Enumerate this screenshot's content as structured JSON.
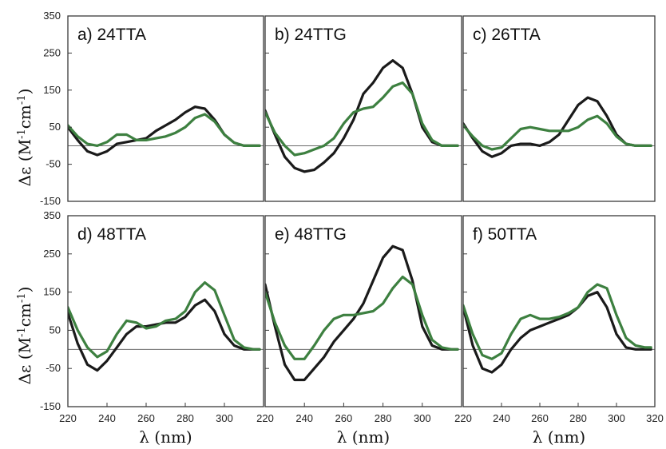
{
  "chart_data": {
    "type": "line",
    "layout": "2x3 small multiples, shared axes",
    "xlabel": "λ (nm)",
    "ylabel": "Δε (M-1cm-1)",
    "ylabel_parts": {
      "main": "Δε (M",
      "sup1": "-1",
      "mid": "cm",
      "sup2": "-1",
      "end": ")"
    },
    "xlim": [
      220,
      320
    ],
    "ylim": [
      -150,
      350
    ],
    "xticks": [
      220,
      240,
      260,
      280,
      300,
      320
    ],
    "yticks": [
      -150,
      -50,
      50,
      150,
      250,
      350
    ],
    "zero_line": 0,
    "grid": false,
    "legend": "none",
    "series_colors": [
      "#1a1a1a",
      "#3d8040"
    ],
    "panels": [
      {
        "label": "a) 24TTA",
        "series": [
          {
            "x": [
              220,
              225,
              230,
              235,
              240,
              245,
              250,
              255,
              260,
              265,
              270,
              275,
              280,
              285,
              290,
              295,
              300,
              305,
              310,
              315,
              318
            ],
            "values": [
              50,
              15,
              -15,
              -25,
              -15,
              5,
              10,
              15,
              20,
              40,
              55,
              70,
              90,
              105,
              100,
              70,
              30,
              8,
              0,
              0,
              0
            ]
          },
          {
            "x": [
              220,
              225,
              230,
              235,
              240,
              245,
              250,
              255,
              260,
              265,
              270,
              275,
              280,
              285,
              290,
              295,
              300,
              305,
              310,
              315,
              318
            ],
            "values": [
              55,
              25,
              5,
              0,
              10,
              30,
              30,
              15,
              15,
              20,
              25,
              35,
              50,
              75,
              85,
              65,
              30,
              8,
              0,
              0,
              0
            ]
          }
        ]
      },
      {
        "label": "b) 24TTG",
        "series": [
          {
            "x": [
              220,
              225,
              230,
              235,
              240,
              245,
              250,
              255,
              260,
              265,
              270,
              275,
              280,
              285,
              290,
              295,
              300,
              305,
              310,
              315,
              318
            ],
            "values": [
              95,
              30,
              -30,
              -60,
              -70,
              -65,
              -45,
              -20,
              20,
              70,
              140,
              170,
              210,
              230,
              210,
              140,
              50,
              10,
              0,
              0,
              0
            ]
          },
          {
            "x": [
              220,
              225,
              230,
              235,
              240,
              245,
              250,
              255,
              260,
              265,
              270,
              275,
              280,
              285,
              290,
              295,
              300,
              305,
              310,
              315,
              318
            ],
            "values": [
              90,
              35,
              0,
              -25,
              -20,
              -10,
              0,
              20,
              60,
              90,
              100,
              105,
              130,
              160,
              170,
              140,
              60,
              15,
              0,
              0,
              0
            ]
          }
        ]
      },
      {
        "label": "c) 26TTA",
        "series": [
          {
            "x": [
              220,
              225,
              230,
              235,
              240,
              245,
              250,
              255,
              260,
              265,
              270,
              275,
              280,
              285,
              290,
              295,
              300,
              305,
              310,
              315,
              318
            ],
            "values": [
              60,
              20,
              -15,
              -30,
              -20,
              0,
              5,
              5,
              0,
              10,
              30,
              70,
              110,
              130,
              120,
              80,
              30,
              5,
              0,
              0,
              0
            ]
          },
          {
            "x": [
              220,
              225,
              230,
              235,
              240,
              245,
              250,
              255,
              260,
              265,
              270,
              275,
              280,
              285,
              290,
              295,
              300,
              305,
              310,
              315,
              318
            ],
            "values": [
              55,
              25,
              0,
              -10,
              -5,
              20,
              45,
              50,
              45,
              40,
              40,
              40,
              50,
              70,
              80,
              60,
              25,
              5,
              0,
              0,
              0
            ]
          }
        ]
      },
      {
        "label": "d) 48TTA",
        "series": [
          {
            "x": [
              220,
              225,
              230,
              235,
              240,
              245,
              250,
              255,
              260,
              265,
              270,
              275,
              280,
              285,
              290,
              295,
              300,
              305,
              310,
              315,
              318
            ],
            "values": [
              95,
              15,
              -40,
              -55,
              -30,
              5,
              40,
              60,
              60,
              65,
              70,
              70,
              85,
              115,
              130,
              100,
              40,
              10,
              0,
              0,
              0
            ]
          },
          {
            "x": [
              220,
              225,
              230,
              235,
              240,
              245,
              250,
              255,
              260,
              265,
              270,
              275,
              280,
              285,
              290,
              295,
              300,
              305,
              310,
              315,
              318
            ],
            "values": [
              110,
              50,
              5,
              -20,
              -5,
              40,
              75,
              70,
              55,
              60,
              75,
              80,
              100,
              150,
              175,
              155,
              90,
              25,
              5,
              0,
              0
            ]
          }
        ]
      },
      {
        "label": "e) 48TTG",
        "series": [
          {
            "x": [
              220,
              225,
              230,
              235,
              240,
              245,
              250,
              255,
              260,
              265,
              270,
              275,
              280,
              285,
              290,
              295,
              300,
              305,
              310,
              315,
              318
            ],
            "values": [
              170,
              60,
              -40,
              -80,
              -80,
              -50,
              -20,
              20,
              50,
              80,
              120,
              180,
              240,
              270,
              260,
              180,
              60,
              10,
              0,
              0,
              0
            ]
          },
          {
            "x": [
              220,
              225,
              230,
              235,
              240,
              245,
              250,
              255,
              260,
              265,
              270,
              275,
              280,
              285,
              290,
              295,
              300,
              305,
              310,
              315,
              318
            ],
            "values": [
              150,
              70,
              10,
              -25,
              -25,
              10,
              50,
              80,
              90,
              90,
              95,
              100,
              120,
              160,
              190,
              170,
              90,
              25,
              5,
              0,
              0
            ]
          }
        ]
      },
      {
        "label": "f) 50TTA",
        "series": [
          {
            "x": [
              220,
              225,
              230,
              235,
              240,
              245,
              250,
              255,
              260,
              265,
              270,
              275,
              280,
              285,
              290,
              295,
              300,
              305,
              310,
              315,
              318
            ],
            "values": [
              110,
              10,
              -50,
              -60,
              -40,
              0,
              30,
              50,
              60,
              70,
              80,
              90,
              110,
              140,
              150,
              110,
              40,
              5,
              0,
              0,
              0
            ]
          },
          {
            "x": [
              220,
              225,
              230,
              235,
              240,
              245,
              250,
              255,
              260,
              265,
              270,
              275,
              280,
              285,
              290,
              295,
              300,
              305,
              310,
              315,
              318
            ],
            "values": [
              115,
              40,
              -15,
              -25,
              -10,
              40,
              80,
              90,
              80,
              80,
              85,
              95,
              110,
              150,
              170,
              160,
              90,
              30,
              10,
              5,
              5
            ]
          }
        ]
      }
    ]
  }
}
